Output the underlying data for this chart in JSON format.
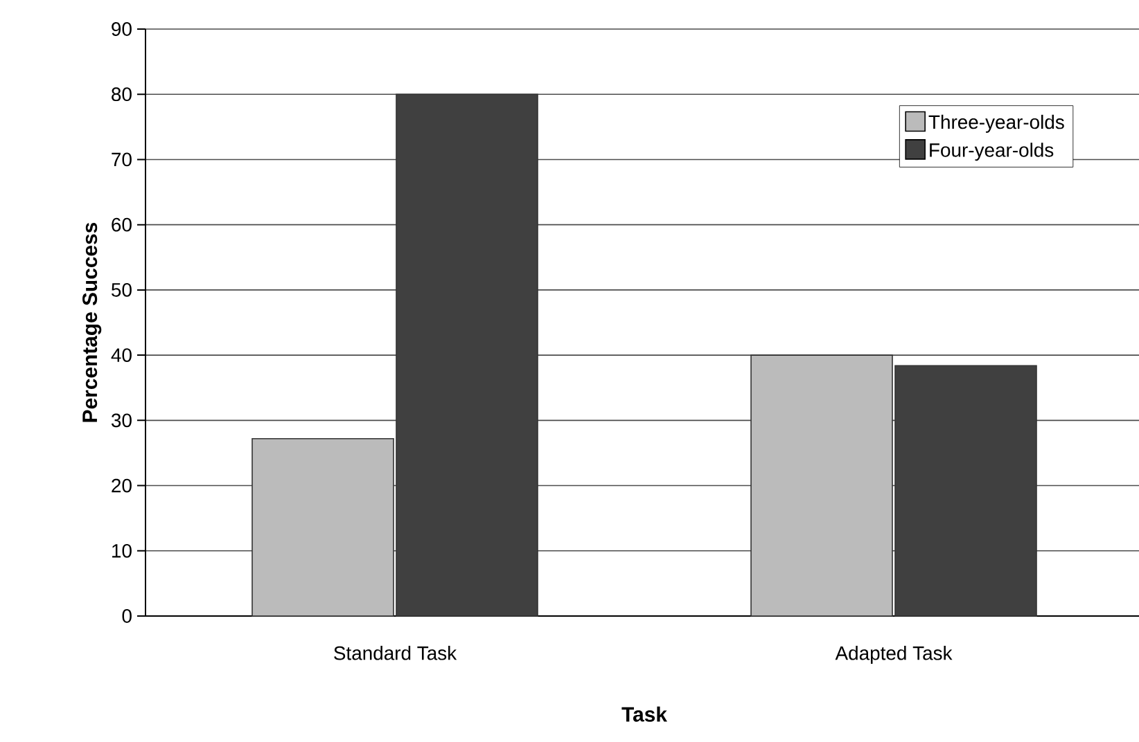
{
  "chart_data": {
    "type": "bar",
    "xlabel": "Task",
    "ylabel": "Percentage Success",
    "categories": [
      "Standard Task",
      "Adapted Task"
    ],
    "series": [
      {
        "name": "Three-year-olds",
        "color": "#bbbbbb",
        "values": [
          27.2,
          40
        ]
      },
      {
        "name": "Four-year-olds",
        "color": "#404040",
        "values": [
          80,
          38.4
        ]
      }
    ],
    "ylim": [
      0,
      90
    ],
    "yticks": [
      0,
      10,
      20,
      30,
      40,
      50,
      60,
      70,
      80,
      90
    ],
    "grid": "y",
    "legend": "top right"
  }
}
